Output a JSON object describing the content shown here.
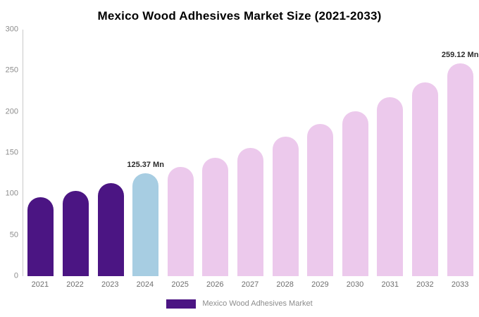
{
  "chart_data": {
    "type": "bar",
    "title": "Mexico Wood Adhesives Market Size (2021-2033)",
    "categories": [
      "2021",
      "2022",
      "2023",
      "2024",
      "2025",
      "2026",
      "2027",
      "2028",
      "2029",
      "2030",
      "2031",
      "2032",
      "2033"
    ],
    "values": [
      96,
      104,
      113,
      125.37,
      133,
      144,
      156,
      170,
      185,
      201,
      218,
      236,
      259.12
    ],
    "bar_colors": [
      "#4B1583",
      "#4B1583",
      "#4B1583",
      "#A7CDE2",
      "#ECC9EC",
      "#ECC9EC",
      "#ECC9EC",
      "#ECC9EC",
      "#ECC9EC",
      "#ECC9EC",
      "#ECC9EC",
      "#ECC9EC",
      "#ECC9EC"
    ],
    "annotations": [
      {
        "category": "2024",
        "text": "125.37 Mn"
      },
      {
        "category": "2033",
        "text": "259.12 Mn"
      }
    ],
    "xlabel": "",
    "ylabel": "",
    "ylim": [
      0,
      300
    ],
    "yticks": [
      0,
      50,
      100,
      150,
      200,
      250,
      300
    ],
    "grid": false,
    "legend": {
      "label": "Mexico Wood Adhesives Market",
      "color": "#4B1583",
      "position": "bottom"
    }
  }
}
